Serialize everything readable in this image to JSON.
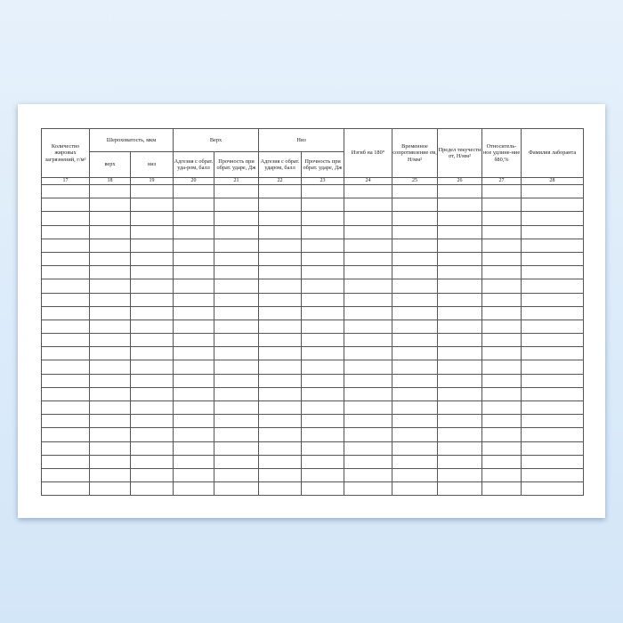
{
  "form": {
    "headers": {
      "col17": "Количество жировых загрязнений, г/м²",
      "roughness": "Шероховатость, мкм",
      "roughness_top": "верх",
      "roughness_bottom": "низ",
      "top": "Верх",
      "top_adhesion": "Адгезия с обрат. уда-ром, балл",
      "top_strength": "Прочность при обрат. ударе, Дж",
      "bottom": "Низ",
      "bottom_adhesion": "Адгезия с обрат. ударом, балл",
      "bottom_strength": "Прочность при обрат. ударе, Дж",
      "bend": "Изгиб на 180°",
      "tensile": "Временное сопротивление σв, Н/мм²",
      "yield": "Предел текучести σт, Н/мм²",
      "elongation": "Относитель-ное удлине-ние δ80,%",
      "lab_name": "Фамилия лаборанта"
    },
    "column_numbers": [
      "17",
      "18",
      "19",
      "20",
      "21",
      "22",
      "23",
      "24",
      "25",
      "26",
      "27",
      "28"
    ],
    "empty_rows": 23
  }
}
